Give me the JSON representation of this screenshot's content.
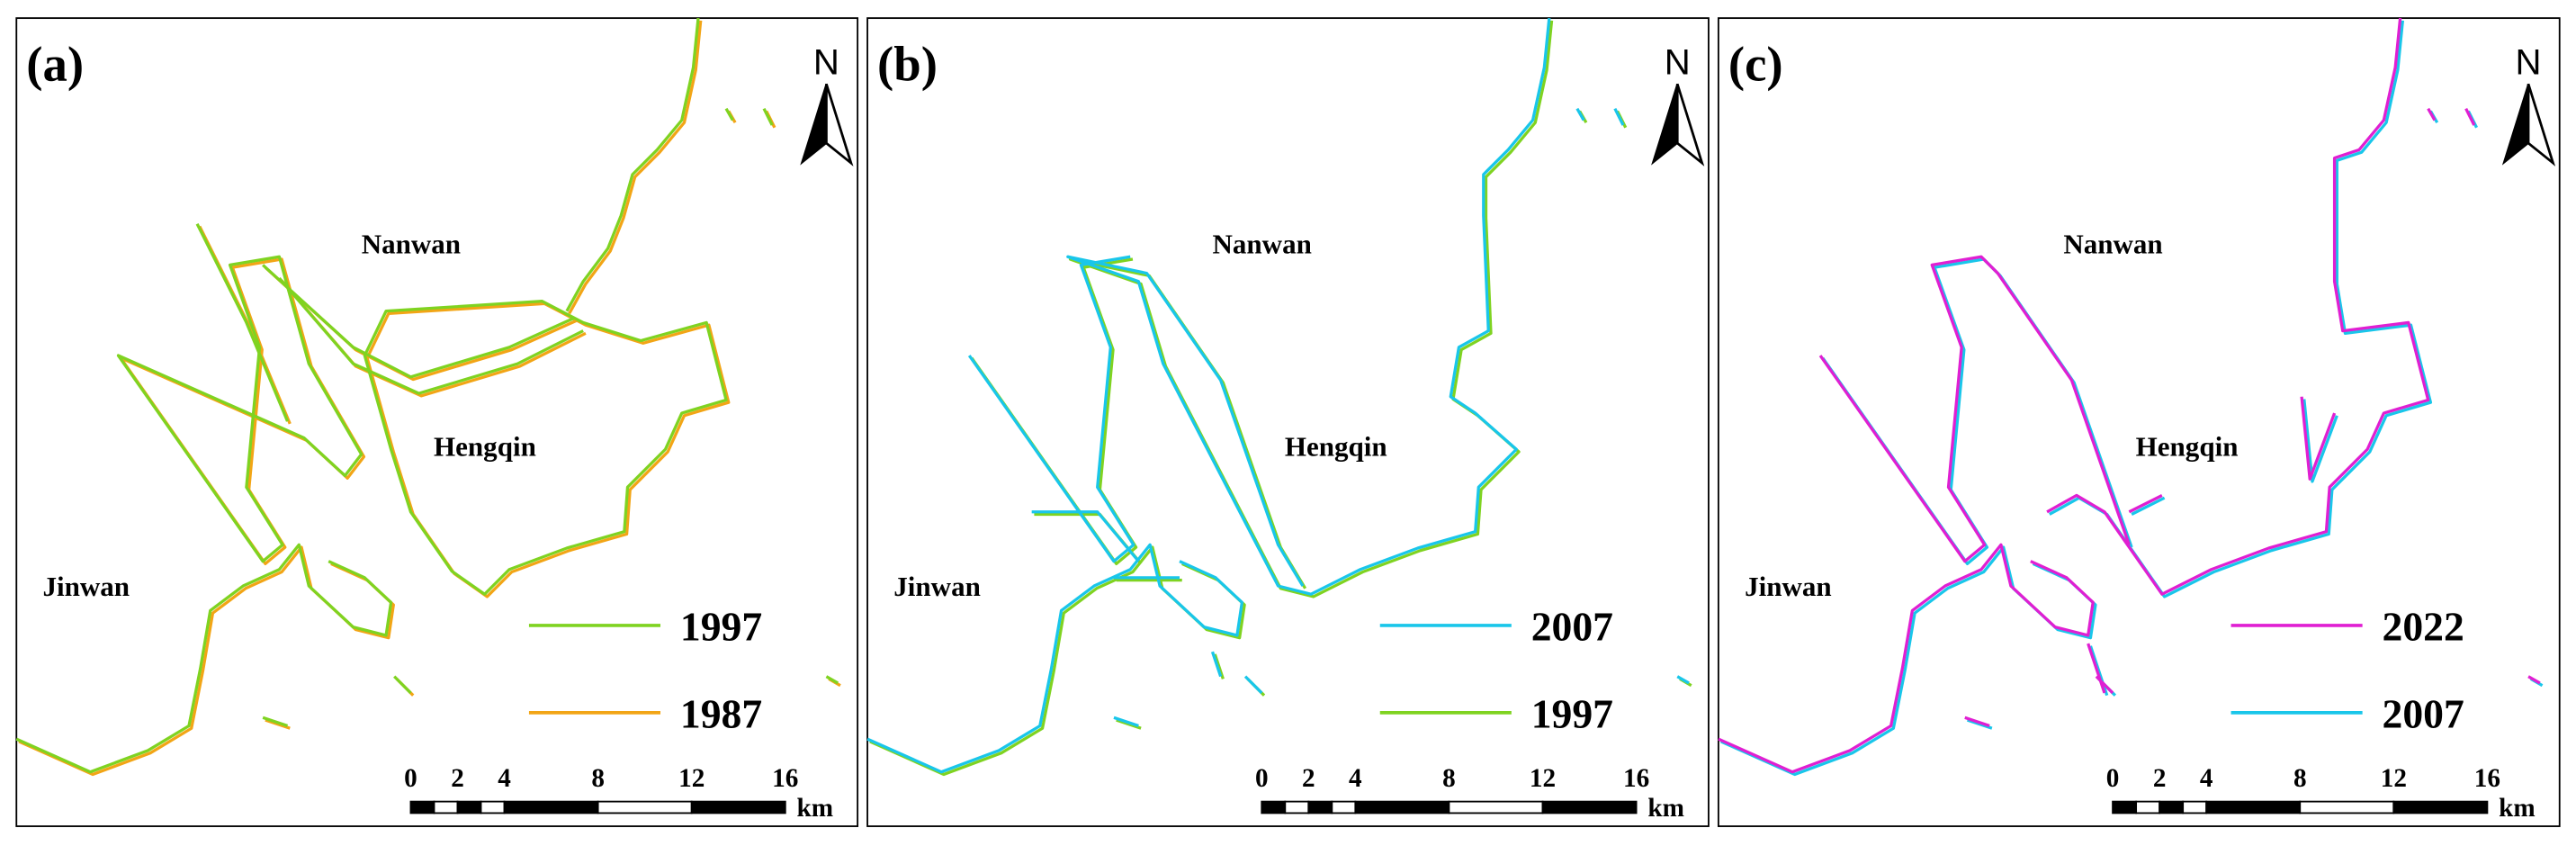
{
  "panels": [
    {
      "label": "(a)",
      "places": [
        "Nanwan",
        "Hengqin",
        "Jinwan"
      ],
      "north": "N",
      "legend": [
        {
          "year": "1997",
          "color": "#7fd321"
        },
        {
          "year": "1987",
          "color": "#f2a516"
        }
      ],
      "scale": {
        "ticks": [
          0,
          2,
          4,
          8,
          12,
          16
        ],
        "unit": "km"
      }
    },
    {
      "label": "(b)",
      "places": [
        "Nanwan",
        "Hengqin",
        "Jinwan"
      ],
      "north": "N",
      "legend": [
        {
          "year": "2007",
          "color": "#19c6ea"
        },
        {
          "year": "1997",
          "color": "#7fd321"
        }
      ],
      "scale": {
        "ticks": [
          0,
          2,
          4,
          8,
          12,
          16
        ],
        "unit": "km"
      }
    },
    {
      "label": "(c)",
      "places": [
        "Nanwan",
        "Hengqin",
        "Jinwan"
      ],
      "north": "N",
      "legend": [
        {
          "year": "2022",
          "color": "#e01fd2"
        },
        {
          "year": "2007",
          "color": "#19c6ea"
        }
      ],
      "scale": {
        "ticks": [
          0,
          2,
          4,
          8,
          12,
          16
        ],
        "unit": "km"
      }
    }
  ]
}
